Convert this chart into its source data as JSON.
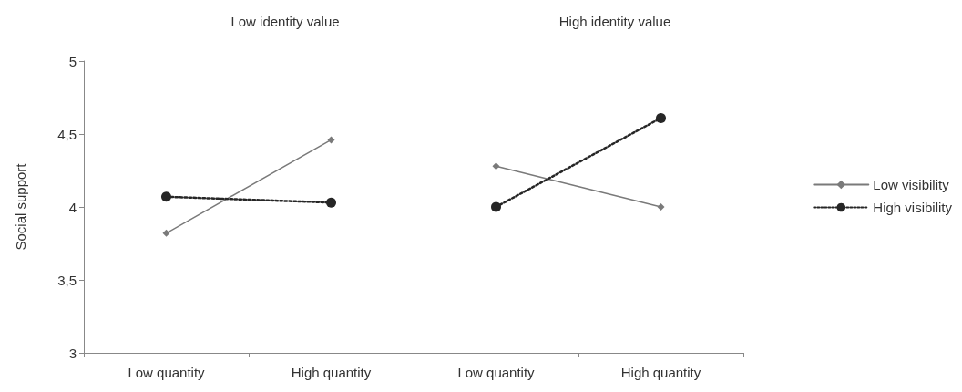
{
  "chart_data": {
    "type": "line",
    "ylabel": "Social support",
    "annotations": [
      "Low identity value",
      "High identity value"
    ],
    "categories": [
      "Low quantity",
      "High quantity",
      "Low quantity",
      "High quantity"
    ],
    "ylim": [
      3,
      5
    ],
    "yticks": [
      3,
      {
        "value": 3.5,
        "label": "3,5"
      },
      4,
      {
        "value": 4.5,
        "label": "4,5"
      },
      5
    ],
    "grid": false,
    "legend": "right",
    "series": [
      {
        "name": "Low visibility",
        "color": "#7a7a7a",
        "marker": "diamond",
        "line_style": "solid",
        "values": [
          3.82,
          4.46,
          null,
          null
        ]
      },
      {
        "name": "High visibility",
        "color": "#262626",
        "marker": "circle",
        "line_style": "dotted",
        "values": [
          4.07,
          4.03,
          null,
          null
        ]
      },
      {
        "color": "#7a7a7a",
        "marker": "diamond",
        "line_style": "solid",
        "values": [
          null,
          null,
          4.28,
          4.0
        ]
      },
      {
        "color": "#262626",
        "marker": "circle",
        "line_style": "dotted",
        "values": [
          null,
          null,
          4.0,
          4.61
        ]
      }
    ]
  }
}
